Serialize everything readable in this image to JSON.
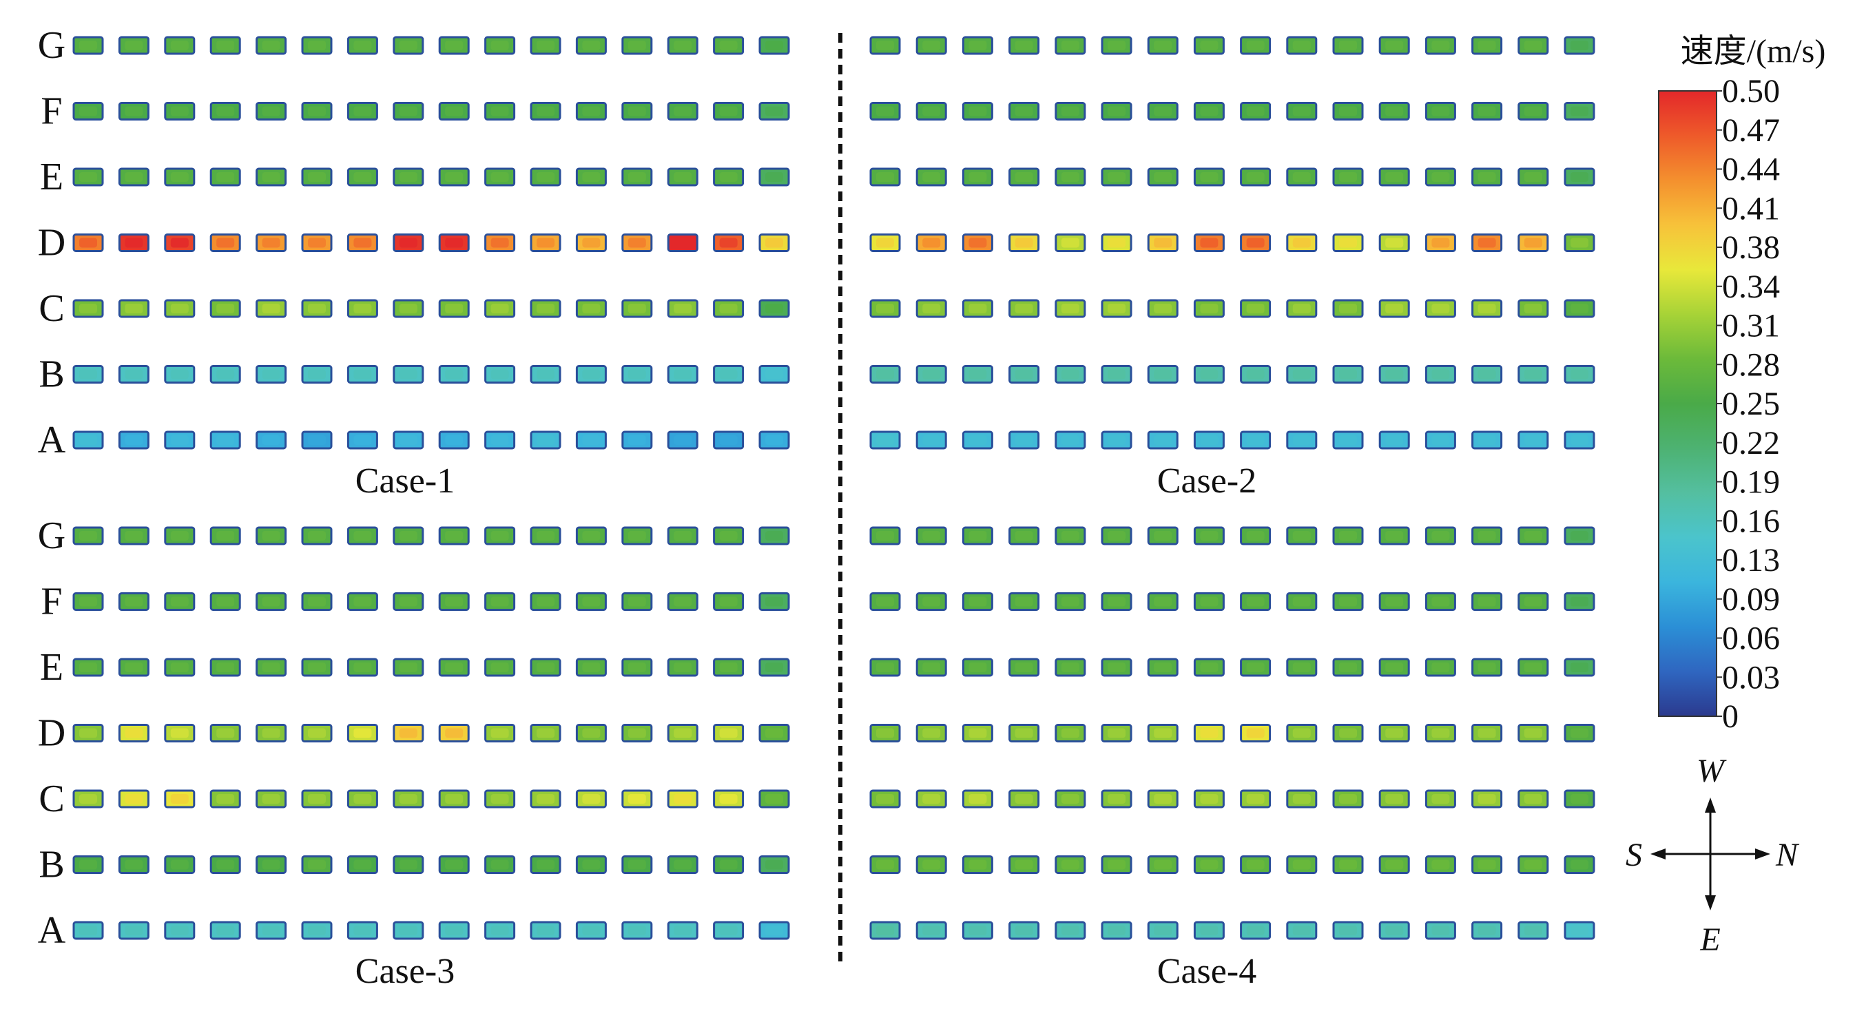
{
  "rows": [
    "A",
    "B",
    "C",
    "D",
    "E",
    "F",
    "G"
  ],
  "cases": [
    {
      "label": "Case-1",
      "velocity": {
        "G": [
          0.26,
          0.26,
          0.26,
          0.26,
          0.26,
          0.26,
          0.26,
          0.26,
          0.26,
          0.26,
          0.26,
          0.26,
          0.26,
          0.26,
          0.26,
          0.24
        ],
        "F": [
          0.25,
          0.25,
          0.25,
          0.25,
          0.25,
          0.25,
          0.25,
          0.25,
          0.25,
          0.25,
          0.25,
          0.25,
          0.25,
          0.25,
          0.25,
          0.23
        ],
        "E": [
          0.26,
          0.26,
          0.26,
          0.26,
          0.26,
          0.26,
          0.26,
          0.26,
          0.26,
          0.26,
          0.26,
          0.26,
          0.26,
          0.26,
          0.26,
          0.23
        ],
        "D": [
          0.44,
          0.49,
          0.48,
          0.43,
          0.42,
          0.42,
          0.43,
          0.49,
          0.49,
          0.43,
          0.41,
          0.4,
          0.42,
          0.5,
          0.46,
          0.37
        ],
        "C": [
          0.29,
          0.3,
          0.3,
          0.29,
          0.31,
          0.3,
          0.3,
          0.29,
          0.29,
          0.3,
          0.29,
          0.29,
          0.29,
          0.3,
          0.29,
          0.24
        ],
        "B": [
          0.15,
          0.15,
          0.15,
          0.15,
          0.15,
          0.15,
          0.15,
          0.15,
          0.15,
          0.15,
          0.15,
          0.15,
          0.15,
          0.15,
          0.15,
          0.13
        ],
        "A": [
          0.12,
          0.1,
          0.11,
          0.11,
          0.1,
          0.09,
          0.1,
          0.11,
          0.1,
          0.11,
          0.12,
          0.11,
          0.1,
          0.09,
          0.09,
          0.1
        ]
      }
    },
    {
      "label": "Case-2",
      "velocity": {
        "G": [
          0.26,
          0.26,
          0.26,
          0.26,
          0.26,
          0.26,
          0.26,
          0.26,
          0.26,
          0.26,
          0.26,
          0.26,
          0.26,
          0.26,
          0.26,
          0.23
        ],
        "F": [
          0.25,
          0.25,
          0.25,
          0.25,
          0.25,
          0.25,
          0.25,
          0.25,
          0.25,
          0.25,
          0.25,
          0.25,
          0.25,
          0.25,
          0.25,
          0.23
        ],
        "E": [
          0.26,
          0.26,
          0.26,
          0.26,
          0.26,
          0.26,
          0.26,
          0.26,
          0.26,
          0.26,
          0.26,
          0.26,
          0.26,
          0.26,
          0.26,
          0.23
        ],
        "D": [
          0.36,
          0.41,
          0.43,
          0.37,
          0.33,
          0.35,
          0.38,
          0.44,
          0.44,
          0.37,
          0.35,
          0.33,
          0.4,
          0.43,
          0.4,
          0.29
        ],
        "C": [
          0.29,
          0.3,
          0.3,
          0.3,
          0.31,
          0.31,
          0.3,
          0.29,
          0.29,
          0.3,
          0.29,
          0.31,
          0.31,
          0.31,
          0.29,
          0.26
        ],
        "B": [
          0.17,
          0.17,
          0.17,
          0.17,
          0.17,
          0.17,
          0.17,
          0.17,
          0.17,
          0.17,
          0.17,
          0.17,
          0.17,
          0.17,
          0.17,
          0.17
        ],
        "A": [
          0.13,
          0.12,
          0.12,
          0.12,
          0.12,
          0.12,
          0.12,
          0.12,
          0.12,
          0.12,
          0.12,
          0.12,
          0.12,
          0.12,
          0.12,
          0.12
        ]
      }
    },
    {
      "label": "Case-3",
      "velocity": {
        "G": [
          0.26,
          0.26,
          0.26,
          0.26,
          0.26,
          0.26,
          0.26,
          0.26,
          0.26,
          0.26,
          0.26,
          0.26,
          0.26,
          0.26,
          0.26,
          0.23
        ],
        "F": [
          0.26,
          0.26,
          0.26,
          0.26,
          0.26,
          0.26,
          0.26,
          0.26,
          0.26,
          0.26,
          0.26,
          0.26,
          0.26,
          0.26,
          0.26,
          0.23
        ],
        "E": [
          0.26,
          0.26,
          0.26,
          0.26,
          0.26,
          0.26,
          0.26,
          0.26,
          0.26,
          0.26,
          0.26,
          0.26,
          0.26,
          0.26,
          0.26,
          0.23
        ],
        "D": [
          0.3,
          0.35,
          0.33,
          0.3,
          0.3,
          0.31,
          0.34,
          0.38,
          0.38,
          0.31,
          0.3,
          0.29,
          0.29,
          0.31,
          0.33,
          0.27
        ],
        "C": [
          0.31,
          0.35,
          0.36,
          0.3,
          0.3,
          0.3,
          0.3,
          0.3,
          0.3,
          0.3,
          0.31,
          0.33,
          0.34,
          0.35,
          0.34,
          0.27
        ],
        "B": [
          0.25,
          0.25,
          0.25,
          0.25,
          0.25,
          0.26,
          0.25,
          0.25,
          0.25,
          0.25,
          0.25,
          0.25,
          0.25,
          0.25,
          0.25,
          0.23
        ],
        "A": [
          0.15,
          0.15,
          0.15,
          0.15,
          0.15,
          0.15,
          0.15,
          0.15,
          0.15,
          0.15,
          0.15,
          0.15,
          0.15,
          0.15,
          0.15,
          0.12
        ]
      }
    },
    {
      "label": "Case-4",
      "velocity": {
        "G": [
          0.26,
          0.26,
          0.26,
          0.26,
          0.26,
          0.26,
          0.26,
          0.26,
          0.26,
          0.26,
          0.26,
          0.26,
          0.26,
          0.26,
          0.26,
          0.23
        ],
        "F": [
          0.26,
          0.26,
          0.26,
          0.26,
          0.26,
          0.26,
          0.26,
          0.26,
          0.26,
          0.26,
          0.26,
          0.26,
          0.26,
          0.26,
          0.26,
          0.23
        ],
        "E": [
          0.26,
          0.26,
          0.26,
          0.26,
          0.26,
          0.26,
          0.26,
          0.26,
          0.26,
          0.26,
          0.26,
          0.26,
          0.26,
          0.26,
          0.26,
          0.23
        ],
        "D": [
          0.29,
          0.3,
          0.31,
          0.3,
          0.29,
          0.3,
          0.31,
          0.35,
          0.36,
          0.3,
          0.29,
          0.3,
          0.3,
          0.3,
          0.3,
          0.26
        ],
        "C": [
          0.29,
          0.31,
          0.32,
          0.3,
          0.29,
          0.3,
          0.31,
          0.31,
          0.31,
          0.3,
          0.29,
          0.3,
          0.3,
          0.31,
          0.3,
          0.26
        ],
        "B": [
          0.27,
          0.27,
          0.27,
          0.27,
          0.27,
          0.27,
          0.27,
          0.27,
          0.27,
          0.27,
          0.27,
          0.27,
          0.27,
          0.27,
          0.27,
          0.25
        ],
        "A": [
          0.17,
          0.16,
          0.16,
          0.16,
          0.16,
          0.16,
          0.16,
          0.16,
          0.16,
          0.16,
          0.16,
          0.16,
          0.16,
          0.16,
          0.16,
          0.14
        ]
      }
    }
  ],
  "colorbar": {
    "title": "速度/(m/s)",
    "ticks": [
      "0.50",
      "0.47",
      "0.44",
      "0.41",
      "0.38",
      "0.34",
      "0.31",
      "0.28",
      "0.25",
      "0.22",
      "0.19",
      "0.16",
      "0.13",
      "0.09",
      "0.06",
      "0.03",
      "0"
    ],
    "min": 0,
    "max": 0.5,
    "stops": [
      "#2b3a8e",
      "#2f66c0",
      "#2b8fd6",
      "#3bb5dd",
      "#4bc4cc",
      "#54bfa0",
      "#4db272",
      "#4aaa48",
      "#6cba3a",
      "#a7d337",
      "#e8e83a",
      "#f7c23a",
      "#f4902e",
      "#ee5a2a",
      "#e3282a"
    ]
  },
  "compass": {
    "W": "W",
    "N": "N",
    "S": "S",
    "E": "E"
  }
}
